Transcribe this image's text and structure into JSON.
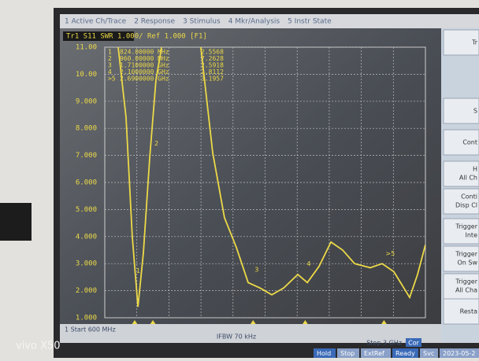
{
  "tabs": [
    "1 Active Ch/Trace",
    "2 Response",
    "3 Stimulus",
    "4 Mkr/Analysis",
    "5 Instr State"
  ],
  "trace_header": "Tr1 S11 SWR 1.000/ Ref 1.000 [F1]",
  "chart_data": {
    "type": "line",
    "x": [
      700,
      759,
      806,
      848,
      889,
      936,
      983,
      1025,
      1172,
      1319,
      1408,
      1496,
      1585,
      1673,
      1762,
      1850,
      1939,
      2045,
      2116,
      2204,
      2293,
      2381,
      2470,
      2587,
      2676,
      2764,
      2882,
      2941,
      3000
    ],
    "series": [
      {
        "name": "S11",
        "color": "#ecd948",
        "values": [
          11,
          8.4,
          4.0,
          1.4,
          3.4,
          6.9,
          9.8,
          11,
          null,
          11,
          7.1,
          4.7,
          3.6,
          2.3,
          2.1,
          1.85,
          2.1,
          2.6,
          2.3,
          2.9,
          3.8,
          3.5,
          3.0,
          2.85,
          3.0,
          2.7,
          1.75,
          2.6,
          3.7
        ]
      }
    ],
    "xlim": [
      600,
      3000
    ],
    "ylim": [
      1,
      11
    ],
    "yticks": [
      {
        "value": 1,
        "label": "1.000"
      },
      {
        "value": 2,
        "label": "2.000"
      },
      {
        "value": 3,
        "label": "3.000"
      },
      {
        "value": 4,
        "label": "4.000"
      },
      {
        "value": 5,
        "label": "5.000"
      },
      {
        "value": 6,
        "label": "6.000"
      },
      {
        "value": 7,
        "label": "7.000"
      },
      {
        "value": 8,
        "label": "8.000"
      },
      {
        "value": 9,
        "label": "9.000"
      },
      {
        "value": 10,
        "label": "10.00"
      },
      {
        "value": 11,
        "label": "11.00"
      }
    ],
    "grid": true,
    "markers": [
      {
        "label": "1",
        "frequency": "824.00000 MHz",
        "value_text": "2.5568",
        "x": 824,
        "value": 2.5568
      },
      {
        "label": "2",
        "frequency": "960.00000 MHz",
        "value_text": "7.2628",
        "x": 960,
        "value": 7.2628
      },
      {
        "label": "3",
        "frequency": "1.7100000 GHz",
        "value_text": "2.5918",
        "x": 1710,
        "value": 2.5918
      },
      {
        "label": "4",
        "frequency": "2.1000000 GHz",
        "value_text": "2.8112",
        "x": 2100,
        "value": 2.8112
      },
      {
        "label": ">5",
        "frequency": "2.6900000 GHz",
        "value_text": "3.1957",
        "x": 2690,
        "value": 3.1957
      }
    ],
    "start_label": "1  Start 600 MHz",
    "ifbw_label": "IFBW 70 kHz",
    "stop_label": "Stop 3 GHz",
    "cor_label": "Cor"
  },
  "status": [
    "Hold",
    "Stop",
    "ExtRef",
    "Ready",
    "Svc",
    "2023-05-2"
  ],
  "softkeys": [
    "Tr",
    "S",
    "Cont",
    "H",
    "All Ch",
    "Conti",
    "Disp Cl",
    "Trigger",
    "Inte",
    "Trigger",
    "On Sw",
    "Trigger",
    "All Cha",
    "Resta"
  ],
  "watermark": "vivo X50"
}
